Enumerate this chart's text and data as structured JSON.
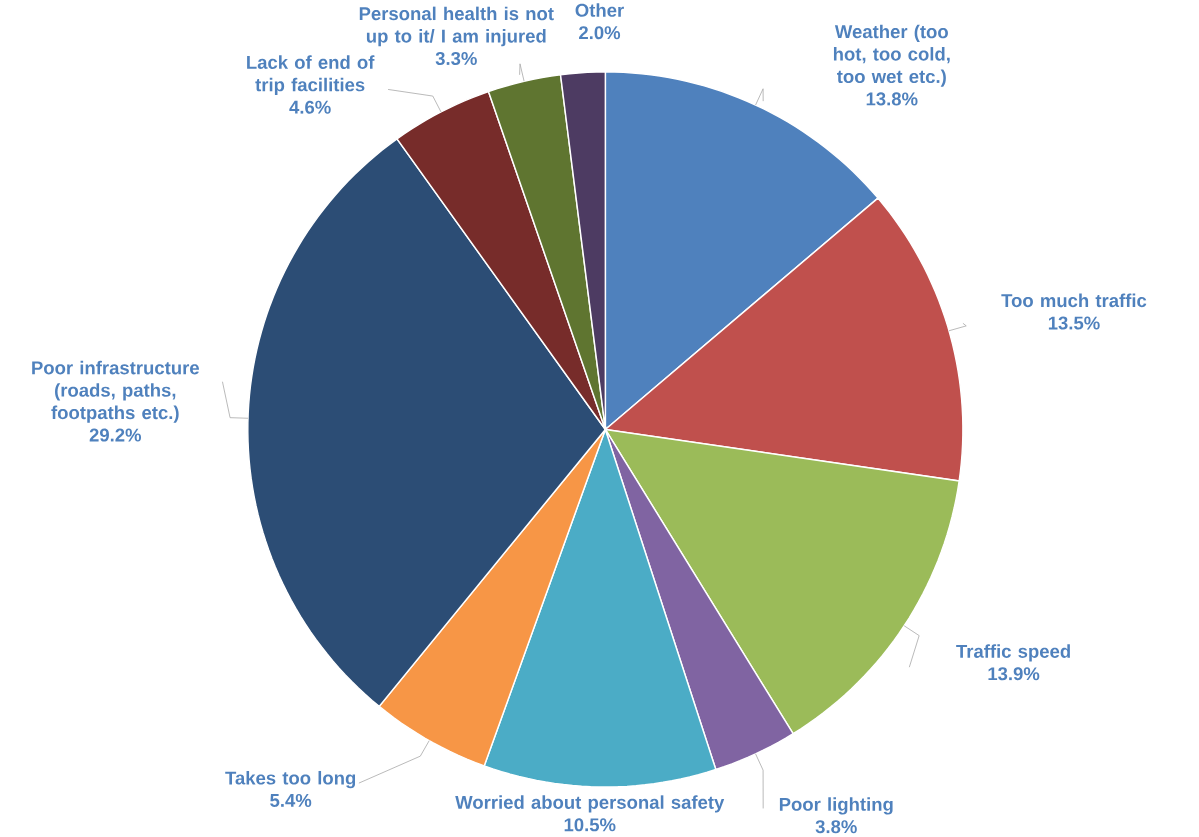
{
  "chart_data": {
    "type": "pie",
    "categories": [
      "Weather (too hot, too cold, too wet etc.)",
      "Too much traffic",
      "Traffic speed",
      "Poor lighting",
      "Worried about personal safety",
      "Takes too long",
      "Poor infrastructure (roads, paths, footpaths etc.)",
      "Lack of end of trip facilities",
      "Personal health is not up to it/ I am injured",
      "Other"
    ],
    "values": [
      13.8,
      13.5,
      13.9,
      3.8,
      10.5,
      5.4,
      29.2,
      4.6,
      3.3,
      2.0
    ],
    "value_labels": [
      "13.8%",
      "13.5%",
      "13.9%",
      "3.8%",
      "10.5%",
      "5.4%",
      "29.2%",
      "4.6%",
      "3.3%",
      "2.0%"
    ],
    "colors": [
      "#4f81bd",
      "#c0504d",
      "#9bbb59",
      "#8064a2",
      "#4bacc6",
      "#f79646",
      "#2c4d75",
      "#772c2a",
      "#5f7530",
      "#4d3b62"
    ]
  }
}
